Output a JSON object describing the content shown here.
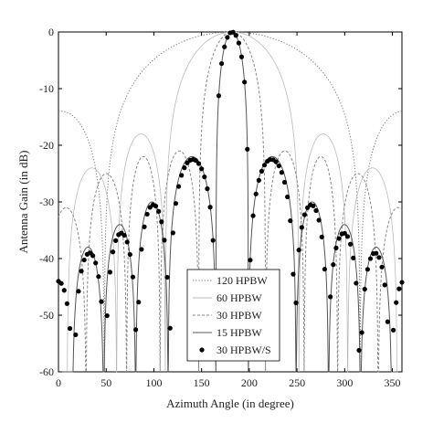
{
  "chart_data": {
    "type": "line",
    "title": "",
    "xlabel": "Azimuth Angle (in degree)",
    "ylabel": "Antenna Gain (in dB)",
    "xlim": [
      0,
      360
    ],
    "ylim": [
      -60,
      0
    ],
    "xticks": [
      0,
      50,
      100,
      150,
      200,
      250,
      300,
      350
    ],
    "yticks": [
      0,
      -10,
      -20,
      -30,
      -40,
      -50,
      -60
    ],
    "grid": false,
    "legend_position": "bottom-center",
    "center_azimuth": 182,
    "series": [
      {
        "name": "120 HPBW",
        "style": "dotted",
        "color": "#777777",
        "main_lobe_nulls_deg": [
          48,
          316
        ],
        "sidelobe_peaks": [
          {
            "x": 3,
            "y": -14
          },
          {
            "x": 361,
            "y": -14
          }
        ]
      },
      {
        "name": "60 HPBW",
        "style": "solid-thin",
        "color": "#bbbbbb",
        "main_lobe_nulls_deg": [
          112,
          252
        ],
        "sidelobe_peaks": [
          {
            "x": 35,
            "y": -24
          },
          {
            "x": 87,
            "y": -18
          },
          {
            "x": 277,
            "y": -18
          },
          {
            "x": 329,
            "y": -24
          }
        ]
      },
      {
        "name": "30 HPBW",
        "style": "dashed",
        "color": "#888888",
        "main_lobe_nulls_deg": [
          147,
          217
        ],
        "sidelobe_peaks": [
          {
            "x": 8,
            "y": -31
          },
          {
            "x": 50,
            "y": -25
          },
          {
            "x": 93,
            "y": -22
          },
          {
            "x": 120,
            "y": -21
          },
          {
            "x": 244,
            "y": -21
          },
          {
            "x": 271,
            "y": -22
          },
          {
            "x": 314,
            "y": -25
          },
          {
            "x": 356,
            "y": -31
          }
        ]
      },
      {
        "name": "15 HPBW",
        "style": "solid",
        "color": "#555555",
        "main_lobe_nulls_deg": [
          165,
          199
        ],
        "sidelobe_peaks": [
          {
            "x": 31,
            "y": -38
          },
          {
            "x": 64,
            "y": -34
          },
          {
            "x": 98,
            "y": -30
          },
          {
            "x": 132,
            "y": -22
          },
          {
            "x": 232,
            "y": -22
          },
          {
            "x": 266,
            "y": -30
          },
          {
            "x": 300,
            "y": -34
          },
          {
            "x": 333,
            "y": -38
          }
        ]
      },
      {
        "name": "30 HPBW/S",
        "style": "markers",
        "color": "#000000",
        "main_lobe_nulls_deg": [
          165,
          199
        ],
        "sidelobe_peaks": [
          {
            "x": 0,
            "y": -44
          },
          {
            "x": 32,
            "y": -39
          },
          {
            "x": 66,
            "y": -35.5
          },
          {
            "x": 99,
            "y": -30.5
          },
          {
            "x": 134,
            "y": -22.5
          },
          {
            "x": 230,
            "y": -22.5
          },
          {
            "x": 265,
            "y": -30.5
          },
          {
            "x": 299,
            "y": -35.5
          },
          {
            "x": 333,
            "y": -39
          },
          {
            "x": 362,
            "y": -44
          }
        ]
      }
    ]
  }
}
